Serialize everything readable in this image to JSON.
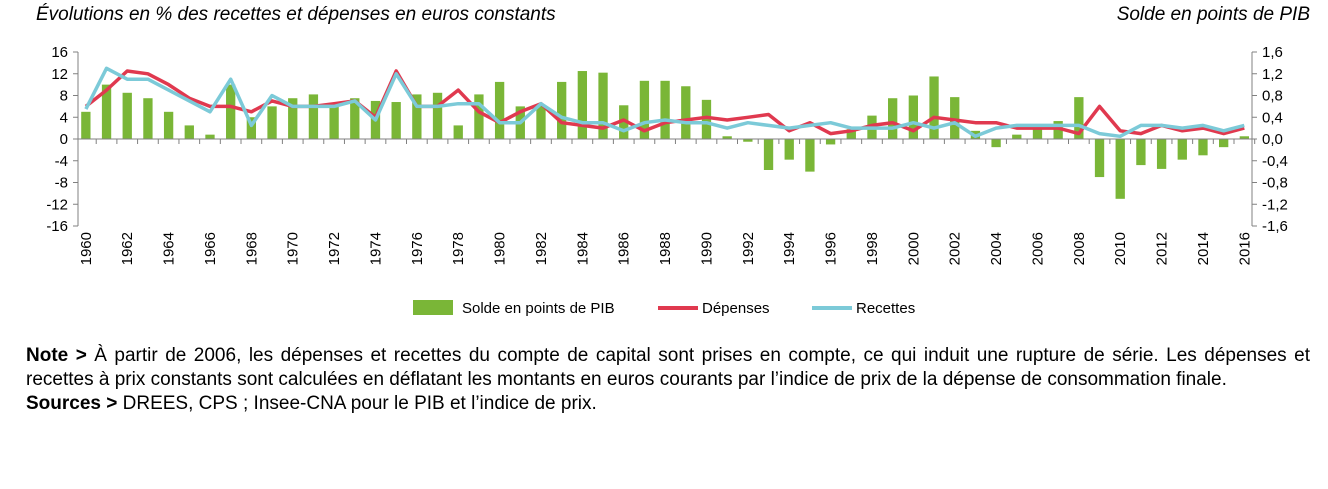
{
  "header": {
    "left_title": "Évolutions en % des recettes et dépenses en euros constants",
    "right_title": "Solde en points de PIB"
  },
  "chart_data": {
    "type": "bar",
    "x": [
      1960,
      1961,
      1962,
      1963,
      1964,
      1965,
      1966,
      1967,
      1968,
      1969,
      1970,
      1971,
      1972,
      1973,
      1974,
      1975,
      1976,
      1977,
      1978,
      1979,
      1980,
      1981,
      1982,
      1983,
      1984,
      1985,
      1986,
      1987,
      1988,
      1989,
      1990,
      1991,
      1992,
      1993,
      1994,
      1995,
      1996,
      1997,
      1998,
      1999,
      2000,
      2001,
      2002,
      2003,
      2004,
      2005,
      2006,
      2007,
      2008,
      2009,
      2010,
      2011,
      2012,
      2013,
      2014,
      2015,
      2016
    ],
    "x_tick_labels": [
      "1960",
      "1962",
      "1964",
      "1966",
      "1968",
      "1970",
      "1972",
      "1974",
      "1976",
      "1978",
      "1980",
      "1982",
      "1984",
      "1986",
      "1988",
      "1990",
      "1992",
      "1994",
      "1996",
      "1998",
      "2000",
      "2002",
      "2004",
      "2006",
      "2008",
      "2010",
      "2012",
      "2014",
      "2016"
    ],
    "y_left_ticks": [
      "16",
      "12",
      "8",
      "4",
      "0",
      "-4",
      "-8",
      "-12",
      "-16"
    ],
    "y_right_ticks": [
      "1,6",
      "1,2",
      "0,8",
      "0,4",
      "0,0",
      "-0,4",
      "-0,8",
      "-1,2",
      "-1,6"
    ],
    "ylim_left": [
      -16,
      16
    ],
    "ylim_right": [
      -1.6,
      1.6
    ],
    "series": [
      {
        "name": "Solde en points de PIB",
        "type": "bar",
        "axis": "right",
        "color": "#7ab637",
        "values": [
          0.5,
          1.0,
          0.85,
          0.75,
          0.5,
          0.25,
          0.08,
          1.0,
          0.4,
          0.6,
          0.75,
          0.82,
          0.65,
          0.75,
          0.7,
          0.68,
          0.82,
          0.85,
          0.25,
          0.82,
          1.05,
          0.6,
          0.62,
          1.05,
          1.25,
          1.22,
          0.62,
          1.07,
          1.07,
          0.97,
          0.72,
          0.05,
          -0.05,
          -0.57,
          -0.38,
          -0.6,
          -0.1,
          0.18,
          0.43,
          0.75,
          0.8,
          1.15,
          0.77,
          0.15,
          -0.15,
          0.08,
          0.25,
          0.33,
          0.77,
          -0.7,
          -1.1,
          -0.48,
          -0.55,
          -0.38,
          -0.3,
          -0.15,
          0.05
        ]
      },
      {
        "name": "Dépenses",
        "type": "line",
        "axis": "left",
        "color": "#e0394f",
        "values": [
          6,
          9,
          12.5,
          12,
          10,
          7.5,
          6,
          6,
          5,
          7,
          6,
          6,
          6.5,
          7,
          4,
          12.5,
          6,
          6,
          9,
          5,
          3,
          5,
          6.5,
          3,
          2.5,
          2,
          3.5,
          1.5,
          3,
          3.5,
          4,
          3.5,
          4,
          4.5,
          1.5,
          3,
          1,
          1.5,
          2.5,
          3,
          1.5,
          4,
          3.5,
          3,
          3,
          2,
          2,
          2,
          1,
          6,
          1.5,
          1,
          2.5,
          1.5,
          2,
          1,
          2
        ]
      },
      {
        "name": "Recettes",
        "type": "line",
        "axis": "left",
        "color": "#7ccad8",
        "values": [
          5.5,
          13,
          11,
          11,
          9,
          7,
          5,
          11,
          2.5,
          8,
          6,
          6,
          6,
          7,
          3.5,
          12,
          6,
          6,
          6.5,
          6.5,
          3,
          3,
          6.5,
          4,
          3,
          3,
          1.5,
          3,
          3.5,
          3,
          3,
          2,
          3,
          2.5,
          2,
          2.5,
          3,
          2,
          2,
          2,
          3,
          2,
          3,
          0.5,
          2,
          2.5,
          2.5,
          2.5,
          2.5,
          1,
          0.5,
          2.5,
          2.5,
          2,
          2.5,
          1.5,
          2.5
        ]
      }
    ],
    "legend": [
      "Solde en points de PIB",
      "Dépenses",
      "Recettes"
    ],
    "legend_position": "bottom-center",
    "grid": false
  },
  "notes": {
    "note_label": "Note >",
    "note_text": " À partir de 2006, les dépenses et recettes du compte de capital sont prises en compte, ce qui induit une rupture de série. Les dépenses et recettes à prix constants sont calculées en déflatant les montants en euros courants par l’indice de prix de la dépense de consommation finale.",
    "sources_label": "Sources >",
    "sources_text": " DREES, CPS ; Insee-CNA pour le PIB et l’indice de prix."
  }
}
